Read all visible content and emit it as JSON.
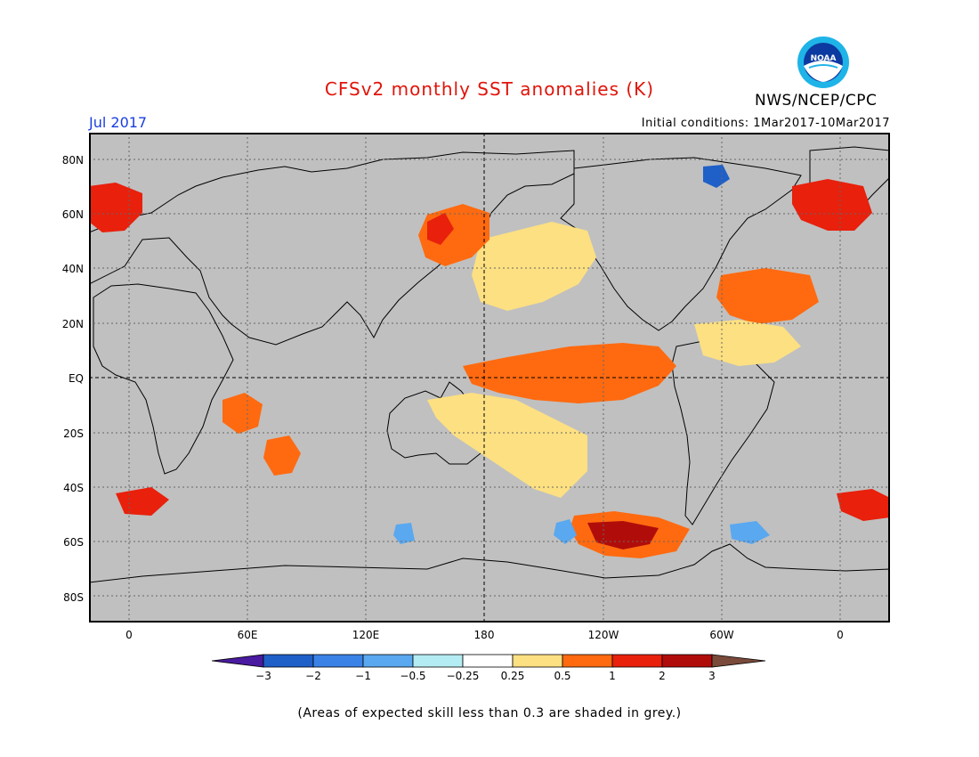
{
  "header": {
    "title": "CFSv2 monthly SST anomalies (K)",
    "period": "Jul 2017",
    "initial_conditions": "Initial conditions: 1Mar2017-10Mar2017",
    "agency": "NWS/NCEP/CPC",
    "logo_text": "NOAA"
  },
  "axes": {
    "lat_labels": [
      "80N",
      "60N",
      "40N",
      "20N",
      "EQ",
      "20S",
      "40S",
      "60S",
      "80S"
    ],
    "lon_labels": [
      "0",
      "60E",
      "120E",
      "180",
      "120W",
      "60W",
      "0"
    ]
  },
  "colorbar": {
    "labels": [
      "−3",
      "−2",
      "−1",
      "−0.5",
      "−0.25",
      "0.25",
      "0.5",
      "1",
      "2",
      "3"
    ],
    "colors": {
      "below": "#4a1aa0",
      "bins": [
        "#1f5fc8",
        "#3a82e6",
        "#5aa8ef",
        "#b4ecf3",
        "#ffffff",
        "#fde081",
        "#ff6a10",
        "#e8200c",
        "#b00d0a"
      ],
      "above": "#7a4a3a"
    }
  },
  "map": {
    "ocean_grey": "#c0c0c0",
    "land_color": "#ffffff"
  },
  "footnote": "(Areas of expected skill less than 0.3 are shaded in grey.)"
}
